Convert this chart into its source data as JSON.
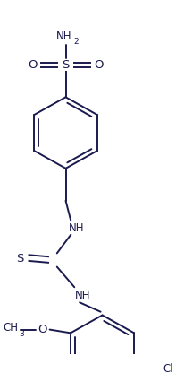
{
  "bg_color": "#ffffff",
  "line_color": "#1a1a4e",
  "line_width": 1.4,
  "font_size": 8.5,
  "fig_width": 1.97,
  "fig_height": 4.16,
  "dpi": 100,
  "xlim": [
    0,
    197
  ],
  "ylim": [
    0,
    416
  ]
}
